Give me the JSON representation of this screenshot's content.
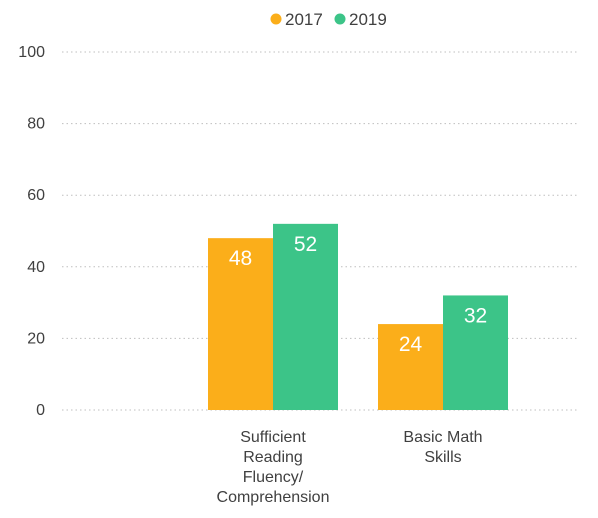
{
  "chart_data": {
    "type": "bar",
    "categories": [
      [
        "Sufficient",
        "Reading",
        "Fluency/",
        "Comprehension"
      ],
      [
        "Basic Math",
        "Skills"
      ]
    ],
    "series": [
      {
        "name": "2017",
        "color": "#FBAE1A",
        "values": [
          48,
          24
        ]
      },
      {
        "name": "2019",
        "color": "#3CC488",
        "values": [
          52,
          32
        ]
      }
    ],
    "ylim": [
      0,
      100
    ],
    "yticks": [
      0,
      20,
      40,
      60,
      80,
      100
    ],
    "grid": "dotted horizontal",
    "legend_position": "top-center",
    "data_labels": true
  }
}
